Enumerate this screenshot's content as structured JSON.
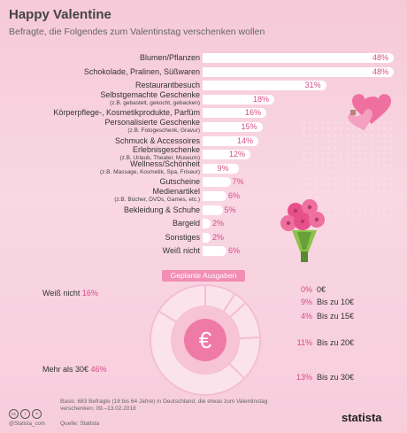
{
  "header": {
    "title": "Happy Valentine",
    "subtitle": "Befragte, die Folgendes zum Valentinstag verschenken wollen"
  },
  "chart_data": [
    {
      "type": "bar",
      "orientation": "horizontal",
      "unit": "%",
      "categories": [
        {
          "label": "Blumen/Pflanzen",
          "sub": "",
          "value": 48
        },
        {
          "label": "Schokolade, Pralinen, Süßwaren",
          "sub": "",
          "value": 48
        },
        {
          "label": "Restaurantbesuch",
          "sub": "",
          "value": 31
        },
        {
          "label": "Selbstgemachte Geschenke",
          "sub": "(z.B. gebastelt, gekocht, gebacken)",
          "value": 18
        },
        {
          "label": "Körperpflege-, Kosmetikprodukte, Parfüm",
          "sub": "",
          "value": 16
        },
        {
          "label": "Personalisierte Geschenke",
          "sub": "(z.B. Fotogeschenk, Gravur)",
          "value": 15
        },
        {
          "label": "Schmuck & Accessoires",
          "sub": "",
          "value": 14
        },
        {
          "label": "Erlebnisgeschenke",
          "sub": "(z.B. Urlaub, Theater, Museum)",
          "value": 12
        },
        {
          "label": "Wellness/Schönheit",
          "sub": "(z.B. Massage, Kosmetik, Spa, Friseur)",
          "value": 9
        },
        {
          "label": "Gutscheine",
          "sub": "",
          "value": 7
        },
        {
          "label": "Medienartikel",
          "sub": "(z.B. Bücher, DVDs, Games, etc.)",
          "value": 6
        },
        {
          "label": "Bekleidung & Schuhe",
          "sub": "",
          "value": 5
        },
        {
          "label": "Bargeld",
          "sub": "",
          "value": 2
        },
        {
          "label": "Sonstiges",
          "sub": "",
          "value": 2
        },
        {
          "label": "Weiß nicht",
          "sub": "",
          "value": 6
        }
      ]
    },
    {
      "type": "pie",
      "title": "Geplante Ausgaben",
      "slices": [
        {
          "label": "0€",
          "value": 0
        },
        {
          "label": "Bis zu 10€",
          "value": 9
        },
        {
          "label": "Bis zu 15€",
          "value": 4
        },
        {
          "label": "Bis zu 20€",
          "value": 11
        },
        {
          "label": "Bis zu 30€",
          "value": 13
        },
        {
          "label": "Mehr als 30€",
          "value": 46
        },
        {
          "label": "Weiß nicht",
          "value": 16
        }
      ],
      "center_symbol": "€"
    }
  ],
  "footer": {
    "basis": "Basis: 683 Befragte (18 bis 64 Jahre) in Deutschland, die etwas zum Valentinstag verschenken; 09.–13.02.2018",
    "source": "Quelle: Statista",
    "credit": "@Statista_com",
    "brand": "statista"
  },
  "colors": {
    "accent": "#d94a8a",
    "bar": "#ffffff",
    "heart": "#ef6f9f",
    "donut_light": "#fbe3ec"
  },
  "icons": [
    "heart-gift-icon",
    "flower-bouquet-icon",
    "euro-icon"
  ]
}
